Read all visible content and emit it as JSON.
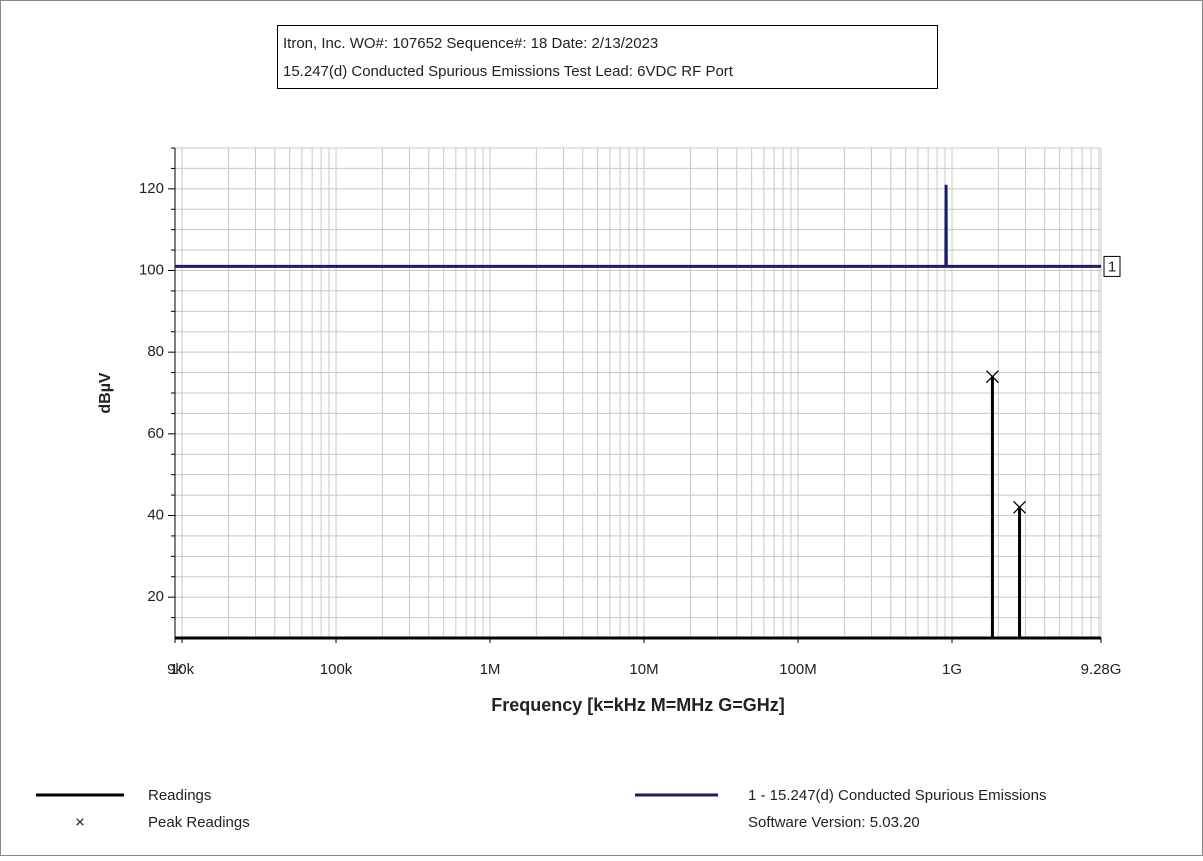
{
  "chart_data": {
    "type": "spectrum",
    "title_lines": [
      "Itron, Inc. WO#: 107652 Sequence#: 18 Date:  2/13/2023",
      "15.247(d) Conducted Spurious Emissions  Test Lead:  6VDC RF Port"
    ],
    "xlabel": "Frequency [k=kHz M=MHz G=GHz]",
    "ylabel": "dBµV",
    "xscale": "log",
    "xlim": [
      9000,
      9280000000
    ],
    "ylim": [
      10,
      130
    ],
    "xticks": [
      {
        "value": 9000,
        "label": "9k"
      },
      {
        "value": 10000,
        "label": "10k"
      },
      {
        "value": 100000,
        "label": "100k"
      },
      {
        "value": 1000000,
        "label": "1M"
      },
      {
        "value": 10000000,
        "label": "10M"
      },
      {
        "value": 100000000,
        "label": "100M"
      },
      {
        "value": 1000000000,
        "label": "1G"
      },
      {
        "value": 9280000000,
        "label": "9.28G"
      }
    ],
    "yticks": [
      20,
      40,
      60,
      80,
      100,
      120
    ],
    "xgrid": [
      20000,
      30000,
      40000,
      50000,
      60000,
      70000,
      80000,
      90000,
      200000,
      300000,
      400000,
      500000,
      600000,
      700000,
      800000,
      900000,
      2000000,
      3000000,
      4000000,
      5000000,
      6000000,
      7000000,
      8000000,
      9000000,
      20000000,
      30000000,
      40000000,
      50000000,
      60000000,
      70000000,
      80000000,
      90000000,
      200000000,
      300000000,
      400000000,
      500000000,
      600000000,
      700000000,
      800000000,
      900000000,
      2000000000,
      3000000000,
      4000000000,
      5000000000,
      6000000000,
      7000000000,
      8000000000,
      9000000000
    ],
    "ygrid": [
      15,
      25,
      30,
      35,
      45,
      50,
      55,
      65,
      70,
      75,
      85,
      90,
      95,
      105,
      110,
      115,
      125,
      130
    ],
    "series": [
      {
        "name": "Readings",
        "color": "#000000",
        "style": "sticks",
        "x": [
          1830000000,
          2745000000
        ],
        "values": [
          74,
          42
        ]
      },
      {
        "name": "Peak Readings",
        "color": "#000000",
        "style": "x-markers",
        "x": [
          1830000000,
          2745000000
        ],
        "values": [
          74,
          42
        ]
      },
      {
        "name": "1 - 15.247(d) Conducted Spurious Emissions",
        "color": "#1c1c6b",
        "style": "line",
        "tag": "1",
        "x": [
          9000,
          912000000,
          915000000,
          918000000,
          9280000000
        ],
        "values": [
          101,
          101,
          121,
          101,
          101
        ]
      }
    ],
    "footnote": "Software Version: 5.03.20"
  }
}
